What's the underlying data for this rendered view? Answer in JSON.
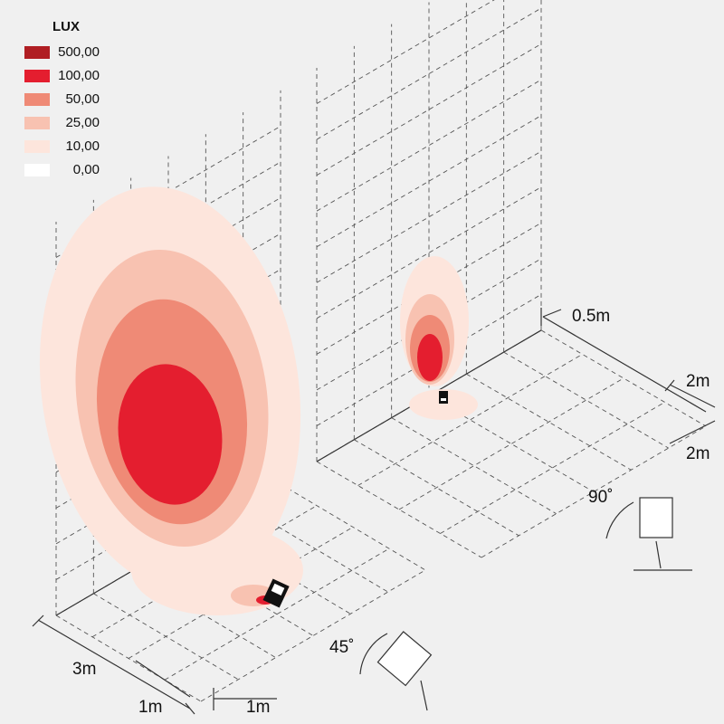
{
  "legend": {
    "title": "LUX",
    "items": [
      {
        "label": "500,00",
        "color": "#b01e23"
      },
      {
        "label": "100,00",
        "color": "#e41e2f"
      },
      {
        "label": "50,00",
        "color": "#ef8a76"
      },
      {
        "label": "25,00",
        "color": "#f8c2b1"
      },
      {
        "label": "10,00",
        "color": "#fde5dc"
      },
      {
        "label": "0,00",
        "color": "#ffffff"
      }
    ]
  },
  "dimensions": {
    "depth": "3m",
    "left_width": "1m",
    "left_spacing": "1m",
    "offset": "0.5m",
    "right_width": "2m",
    "right_spacing": "2m"
  },
  "angles": {
    "tilt": "45˚",
    "upright": "90˚"
  }
}
